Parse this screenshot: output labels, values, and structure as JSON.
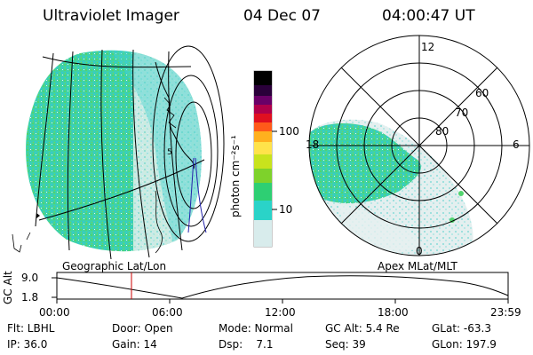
{
  "header": {
    "instrument": "Ultraviolet Imager",
    "date": "04 Dec 07",
    "time": "04:00:47 UT"
  },
  "left_panel": {
    "caption": "Geographic Lat/Lon"
  },
  "right_panel": {
    "caption": "Apex MLat/MLT",
    "lat_labels": [
      "60",
      "70",
      "80"
    ],
    "mlt_labels": [
      "12",
      "18",
      "6",
      "0"
    ]
  },
  "colorbar": {
    "unit_label": "photon cm⁻²s⁻¹",
    "tick_labels": [
      "100",
      "10"
    ],
    "scale": "log",
    "colors": [
      "#d8ecec",
      "#2ad3c8",
      "#2ecf73",
      "#7ed22b",
      "#c8e31d",
      "#ffe34a",
      "#ffb01e",
      "#ff5a1a",
      "#e01020",
      "#b0004a",
      "#6a0068",
      "#2a003a",
      "#000000"
    ]
  },
  "altitude_plot": {
    "ylabel": "GC Alt",
    "y_ticks": [
      "9.0",
      "1.8"
    ],
    "x_ticks": [
      "00:00",
      "06:00",
      "12:00",
      "18:00",
      "23:59"
    ],
    "current_time_fraction": 0.167,
    "curve_color": "#000000",
    "marker_color": "#cc0000"
  },
  "status": {
    "row1": [
      {
        "label": "Flt: LBHL"
      },
      {
        "label": "Door: Open"
      },
      {
        "label": "Mode: Normal"
      },
      {
        "label": "GC Alt: 5.4 Re"
      },
      {
        "label": "GLat: -63.3"
      }
    ],
    "row2": [
      {
        "label": "IP: 36.0"
      },
      {
        "label": "Gain: 14"
      },
      {
        "label": "Dsp:    7.1"
      },
      {
        "label": "Seq: 39"
      },
      {
        "label": "GLon: 197.9"
      }
    ]
  }
}
